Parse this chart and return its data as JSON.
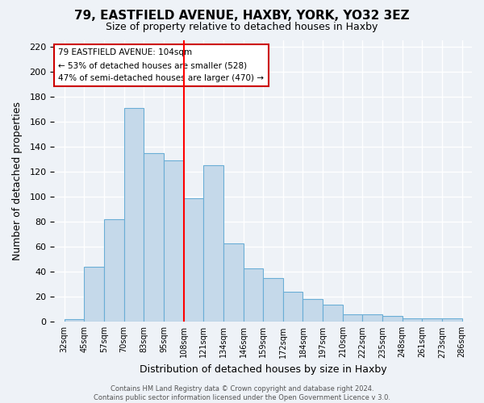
{
  "title": "79, EASTFIELD AVENUE, HAXBY, YORK, YO32 3EZ",
  "subtitle": "Size of property relative to detached houses in Haxby",
  "xlabel": "Distribution of detached houses by size in Haxby",
  "ylabel": "Number of detached properties",
  "footer_lines": [
    "Contains HM Land Registry data © Crown copyright and database right 2024.",
    "Contains public sector information licensed under the Open Government Licence v 3.0."
  ],
  "bin_labels": [
    "32sqm",
    "45sqm",
    "57sqm",
    "70sqm",
    "83sqm",
    "95sqm",
    "108sqm",
    "121sqm",
    "134sqm",
    "146sqm",
    "159sqm",
    "172sqm",
    "184sqm",
    "197sqm",
    "210sqm",
    "222sqm",
    "235sqm",
    "248sqm",
    "261sqm",
    "273sqm",
    "286sqm"
  ],
  "values": [
    2,
    44,
    82,
    171,
    135,
    129,
    99,
    125,
    63,
    43,
    35,
    24,
    18,
    14,
    6,
    6,
    5,
    3,
    3,
    3
  ],
  "bar_color": "#c5d9ea",
  "bar_edge_color": "#6aaed6",
  "vline_label_index": 6,
  "vline_color": "red",
  "annotation_title": "79 EASTFIELD AVENUE: 104sqm",
  "annotation_line1": "← 53% of detached houses are smaller (528)",
  "annotation_line2": "47% of semi-detached houses are larger (470) →",
  "annotation_box_color": "white",
  "annotation_box_edge": "#cc0000",
  "ylim": [
    0,
    225
  ],
  "yticks": [
    0,
    20,
    40,
    60,
    80,
    100,
    120,
    140,
    160,
    180,
    200,
    220
  ],
  "figsize": [
    6.0,
    5.0
  ],
  "dpi": 100,
  "background_color": "#eef2f7"
}
